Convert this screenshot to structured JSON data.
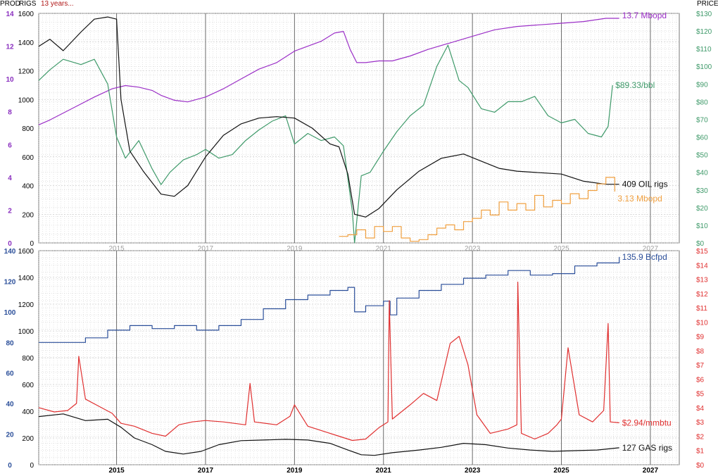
{
  "header": {
    "prod_label": "PROD",
    "rigs_label": "RIGS",
    "period_label": "13 years...",
    "price_label": "PRICE"
  },
  "colors": {
    "oil_prod": "#9b2fc7",
    "oil_price": "#3f9a6a",
    "oil_rigs": "#111111",
    "oil_prod_secondary": "#f0a040",
    "gas_prod": "#2b4f9a",
    "gas_price": "#e03030",
    "gas_rigs": "#111111",
    "prod_axis_top": "#8a2fbf",
    "prod_axis_bottom": "#2b4f9a",
    "price_axis_top": "#3f9a6a",
    "price_axis_bottom": "#e03030",
    "grid_minor": "#c8c8c8",
    "grid_major": "#6a6a6a"
  },
  "chart_data": [
    {
      "panel": "oil",
      "type": "line",
      "x_range": [
        2013.25,
        2027.65
      ],
      "x_ticks": [
        "2015",
        "2017",
        "2019",
        "2021",
        "2023",
        "2025",
        "2027"
      ],
      "x_tick_years": [
        2015,
        2017,
        2019,
        2021,
        2023,
        2025,
        2027
      ],
      "rigs_axis": {
        "range": [
          0,
          1600
        ],
        "ticks": [
          "0",
          "200",
          "400",
          "600",
          "800",
          "1000",
          "1200",
          "1400",
          "1600"
        ]
      },
      "prod_axis": {
        "range": [
          0,
          14
        ],
        "ticks": [
          "0",
          "2",
          "4",
          "6",
          "8",
          "10",
          "12",
          "14"
        ]
      },
      "price_axis": {
        "range": [
          0,
          130
        ],
        "ticks": [
          "$0",
          "$10",
          "$20",
          "$30",
          "$40",
          "$50",
          "$60",
          "$70",
          "$80",
          "$90",
          "$100",
          "$110",
          "$120",
          "$130"
        ]
      },
      "grid": true,
      "series": [
        {
          "name": "Mbopd",
          "axis": "prod",
          "color_key": "oil_prod",
          "end_label": "13.7 Mbopd",
          "x": [
            2013.25,
            2013.5,
            2014.0,
            2014.5,
            2014.9,
            2015.2,
            2015.5,
            2015.8,
            2016.0,
            2016.3,
            2016.6,
            2017.0,
            2017.4,
            2017.8,
            2018.2,
            2018.6,
            2019.0,
            2019.3,
            2019.6,
            2019.9,
            2020.1,
            2020.25,
            2020.4,
            2020.6,
            2020.9,
            2021.2,
            2021.6,
            2022.0,
            2022.5,
            2023.0,
            2023.5,
            2024.0,
            2024.5,
            2025.0,
            2025.5,
            2026.0,
            2026.3
          ],
          "y": [
            7.2,
            7.5,
            8.2,
            8.9,
            9.4,
            9.6,
            9.5,
            9.3,
            9.0,
            8.7,
            8.6,
            8.9,
            9.4,
            10.0,
            10.6,
            11.0,
            11.7,
            12.0,
            12.3,
            12.8,
            12.9,
            11.8,
            11.0,
            11.0,
            11.1,
            11.1,
            11.4,
            11.8,
            12.2,
            12.6,
            13.0,
            13.2,
            13.3,
            13.4,
            13.5,
            13.7,
            13.7
          ]
        },
        {
          "name": "$/bbl",
          "axis": "price",
          "color_key": "oil_price",
          "end_label": "$89.33/bbl",
          "x": [
            2013.25,
            2013.5,
            2013.8,
            2014.2,
            2014.5,
            2014.8,
            2015.0,
            2015.2,
            2015.5,
            2015.8,
            2016.0,
            2016.2,
            2016.5,
            2016.8,
            2017.0,
            2017.3,
            2017.6,
            2017.9,
            2018.2,
            2018.5,
            2018.8,
            2019.0,
            2019.3,
            2019.6,
            2019.9,
            2020.1,
            2020.3,
            2020.35,
            2020.5,
            2020.7,
            2021.0,
            2021.3,
            2021.6,
            2021.9,
            2022.2,
            2022.45,
            2022.7,
            2022.9,
            2023.2,
            2023.5,
            2023.8,
            2024.1,
            2024.4,
            2024.7,
            2025.0,
            2025.3,
            2025.6,
            2025.9,
            2026.05,
            2026.15
          ],
          "y": [
            92,
            98,
            104,
            101,
            104,
            90,
            60,
            48,
            58,
            42,
            33,
            40,
            47,
            50,
            53,
            48,
            50,
            58,
            64,
            69,
            72,
            56,
            62,
            58,
            60,
            55,
            18,
            0,
            38,
            40,
            52,
            63,
            72,
            78,
            100,
            112,
            92,
            88,
            76,
            74,
            80,
            80,
            83,
            72,
            68,
            70,
            62,
            60,
            66,
            89.33
          ]
        },
        {
          "name": "OIL rigs",
          "axis": "rigs",
          "color_key": "oil_rigs",
          "end_label": "409 OIL rigs",
          "x": [
            2013.25,
            2013.5,
            2013.8,
            2014.2,
            2014.5,
            2014.8,
            2015.0,
            2015.1,
            2015.3,
            2015.6,
            2016.0,
            2016.3,
            2016.6,
            2017.0,
            2017.4,
            2017.8,
            2018.2,
            2018.6,
            2019.0,
            2019.4,
            2019.8,
            2020.0,
            2020.2,
            2020.35,
            2020.6,
            2020.9,
            2021.3,
            2021.8,
            2022.3,
            2022.8,
            2023.2,
            2023.6,
            2024.0,
            2024.5,
            2025.0,
            2025.5,
            2026.0,
            2026.3
          ],
          "y": [
            1370,
            1420,
            1340,
            1470,
            1560,
            1575,
            1560,
            1000,
            640,
            500,
            340,
            325,
            400,
            600,
            750,
            830,
            870,
            880,
            870,
            800,
            690,
            670,
            480,
            200,
            180,
            240,
            370,
            500,
            590,
            620,
            570,
            520,
            500,
            490,
            480,
            430,
            409,
            409
          ]
        },
        {
          "name": "Mbopd (secondary)",
          "axis": "prod",
          "color_key": "oil_prod_secondary",
          "end_label": "3.13 Mbopd",
          "x": [
            2020.0,
            2020.2,
            2020.4,
            2020.6,
            2020.8,
            2021.0,
            2021.2,
            2021.4,
            2021.6,
            2021.8,
            2022.0,
            2022.2,
            2022.4,
            2022.6,
            2022.8,
            2023.0,
            2023.2,
            2023.4,
            2023.6,
            2023.8,
            2024.0,
            2024.2,
            2024.4,
            2024.6,
            2024.8,
            2025.0,
            2025.2,
            2025.4,
            2025.6,
            2025.8,
            2026.0,
            2026.2
          ],
          "y": [
            0.4,
            0.5,
            0.8,
            0.3,
            1.0,
            0.7,
            1.0,
            0.3,
            0.1,
            0.2,
            0.5,
            0.9,
            1.1,
            0.8,
            1.3,
            1.5,
            2.0,
            1.7,
            2.5,
            2.0,
            2.4,
            2.0,
            2.9,
            2.2,
            2.6,
            2.4,
            3.0,
            2.7,
            3.2,
            3.6,
            4.0,
            3.13
          ]
        }
      ]
    },
    {
      "panel": "gas",
      "type": "line",
      "x_range": [
        2013.25,
        2027.65
      ],
      "x_ticks": [
        "2015",
        "2017",
        "2019",
        "2021",
        "2023",
        "2025",
        "2027"
      ],
      "x_tick_years": [
        2015,
        2017,
        2019,
        2021,
        2023,
        2025,
        2027
      ],
      "rigs_axis": {
        "range": [
          0,
          1600
        ],
        "ticks": [
          "0",
          "200",
          "400",
          "600",
          "800",
          "1000",
          "1200",
          "1400",
          "1600"
        ]
      },
      "prod_axis": {
        "range": [
          0,
          140
        ],
        "ticks": [
          "0",
          "20",
          "40",
          "60",
          "80",
          "100",
          "120",
          "140"
        ]
      },
      "price_axis": {
        "range": [
          0,
          15
        ],
        "ticks": [
          "$0",
          "$1",
          "$2",
          "$3",
          "$4",
          "$5",
          "$6",
          "$7",
          "$8",
          "$9",
          "$10",
          "$11",
          "$12",
          "$13",
          "$14",
          "$15"
        ]
      },
      "grid": true,
      "series": [
        {
          "name": "Bcfpd",
          "axis": "prod",
          "color_key": "gas_prod",
          "end_label": "135.9 Bcfpd",
          "x": [
            2013.25,
            2013.8,
            2014.3,
            2014.8,
            2015.3,
            2015.8,
            2016.3,
            2016.8,
            2017.3,
            2017.8,
            2018.3,
            2018.8,
            2019.3,
            2019.8,
            2020.2,
            2020.35,
            2020.6,
            2021.0,
            2021.15,
            2021.3,
            2021.8,
            2022.3,
            2022.8,
            2023.3,
            2023.8,
            2024.3,
            2024.8,
            2025.3,
            2025.8,
            2026.3
          ],
          "y": [
            80,
            80,
            83,
            88,
            91,
            89,
            91,
            88,
            91,
            95,
            102,
            108,
            111,
            114,
            116,
            100,
            104,
            107,
            98,
            109,
            114,
            118,
            122,
            124,
            127,
            124,
            125,
            130,
            132,
            135.9
          ]
        },
        {
          "name": "$/mmbtu",
          "axis": "price",
          "color_key": "gas_price",
          "end_label": "$2.94/mmbtu",
          "x": [
            2013.25,
            2013.6,
            2013.9,
            2014.1,
            2014.15,
            2014.3,
            2014.6,
            2014.9,
            2015.1,
            2015.4,
            2015.8,
            2016.1,
            2016.4,
            2016.7,
            2017.0,
            2017.4,
            2017.9,
            2018.0,
            2018.1,
            2018.6,
            2018.9,
            2019.0,
            2019.3,
            2019.7,
            2020.0,
            2020.3,
            2020.6,
            2020.9,
            2021.1,
            2021.13,
            2021.2,
            2021.6,
            2021.9,
            2022.2,
            2022.5,
            2022.7,
            2022.9,
            2023.1,
            2023.4,
            2023.8,
            2024.0,
            2024.02,
            2024.1,
            2024.4,
            2024.7,
            2024.9,
            2025.0,
            2025.15,
            2025.4,
            2025.7,
            2025.95,
            2026.05,
            2026.1,
            2026.3
          ],
          "y": [
            4.0,
            3.7,
            3.8,
            4.3,
            7.6,
            4.6,
            4.1,
            3.6,
            2.9,
            2.7,
            2.2,
            2.0,
            2.8,
            3.0,
            3.1,
            3.0,
            2.8,
            5.7,
            3.0,
            2.8,
            3.4,
            4.2,
            2.7,
            2.3,
            2.0,
            1.7,
            1.8,
            2.6,
            3.0,
            11.5,
            3.2,
            4.2,
            5.0,
            4.5,
            8.5,
            9.0,
            7.0,
            3.5,
            2.2,
            2.5,
            2.8,
            12.8,
            2.2,
            1.8,
            2.2,
            2.8,
            3.2,
            8.2,
            3.5,
            3.0,
            3.8,
            9.9,
            3.0,
            2.94
          ]
        },
        {
          "name": "GAS rigs",
          "axis": "rigs",
          "color_key": "gas_rigs",
          "end_label": "127 GAS rigs",
          "x": [
            2013.25,
            2013.8,
            2014.3,
            2014.8,
            2015.1,
            2015.4,
            2015.8,
            2016.1,
            2016.5,
            2016.9,
            2017.3,
            2017.8,
            2018.3,
            2018.8,
            2019.3,
            2019.8,
            2020.2,
            2020.5,
            2020.8,
            2021.2,
            2021.8,
            2022.3,
            2022.8,
            2023.3,
            2023.8,
            2024.3,
            2024.8,
            2025.3,
            2025.8,
            2026.3
          ],
          "y": [
            360,
            380,
            330,
            340,
            280,
            200,
            150,
            100,
            80,
            100,
            150,
            180,
            185,
            190,
            185,
            160,
            110,
            75,
            70,
            90,
            110,
            130,
            160,
            150,
            125,
            110,
            100,
            105,
            110,
            127
          ]
        }
      ]
    }
  ]
}
